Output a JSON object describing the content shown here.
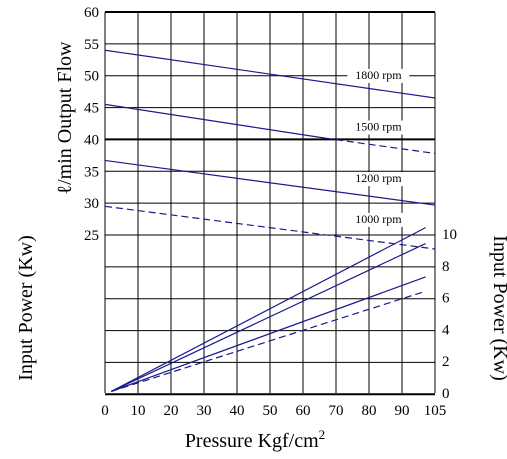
{
  "chart_data": {
    "type": "line",
    "xlabel": "Pressure Kgf/cm",
    "xlabel_sup": "2",
    "ylabel_left_top": "ℓ/min Output Flow",
    "ylabel_left_bottom": "Input Power (Kw)",
    "ylabel_right": "Input Power (Kw)",
    "xlim": [
      0,
      105
    ],
    "x_ticks": [
      "0",
      "10",
      "20",
      "30",
      "40",
      "50",
      "60",
      "70",
      "80",
      "90",
      "105"
    ],
    "flow_ylim": [
      25,
      60
    ],
    "flow_ticks": [
      "25",
      "30",
      "35",
      "40",
      "45",
      "50",
      "55",
      "60"
    ],
    "power_ylim": [
      0,
      10
    ],
    "power_ticks": [
      "0",
      "2",
      "4",
      "6",
      "8",
      "10"
    ],
    "grid": true,
    "line_color": "#1a1a8c",
    "flow_series": [
      {
        "name": "1800 rpm",
        "dashed": false,
        "points": [
          [
            0,
            54
          ],
          [
            105,
            46.5
          ]
        ]
      },
      {
        "name": "1500 rpm",
        "dashed": false,
        "points": [
          [
            0,
            45.5
          ],
          [
            70,
            40.2
          ]
        ]
      },
      {
        "name": "1500 rpm",
        "dashed": true,
        "points": [
          [
            70,
            40.2
          ],
          [
            105,
            37.8
          ]
        ]
      },
      {
        "name": "1200 rpm",
        "dashed": false,
        "points": [
          [
            0,
            36.7
          ],
          [
            105,
            29.7
          ]
        ]
      },
      {
        "name": "1000 rpm",
        "dashed": true,
        "points": [
          [
            0,
            29.5
          ],
          [
            105,
            22.8
          ]
        ]
      }
    ],
    "power_series": [
      {
        "name": "1800 rpm",
        "dashed": false,
        "points": [
          [
            2,
            0.1
          ],
          [
            102,
            10.4
          ]
        ]
      },
      {
        "name": "1500 rpm",
        "dashed": false,
        "points": [
          [
            2,
            0.1
          ],
          [
            102,
            9.4
          ]
        ]
      },
      {
        "name": "1200 rpm",
        "dashed": false,
        "points": [
          [
            2,
            0.1
          ],
          [
            102,
            7.3
          ]
        ]
      },
      {
        "name": "1000 rpm",
        "dashed": true,
        "points": [
          [
            2,
            0.1
          ],
          [
            102,
            6.4
          ]
        ]
      }
    ],
    "rpm_labels": [
      {
        "text": "1800 rpm",
        "x": 87,
        "y": 49.5
      },
      {
        "text": "1500 rpm",
        "x": 87,
        "y": 41.4
      },
      {
        "text": "1200 rpm",
        "x": 87,
        "y": 33.3
      },
      {
        "text": "1000 rpm",
        "x": 87,
        "y": 26.9
      }
    ]
  }
}
